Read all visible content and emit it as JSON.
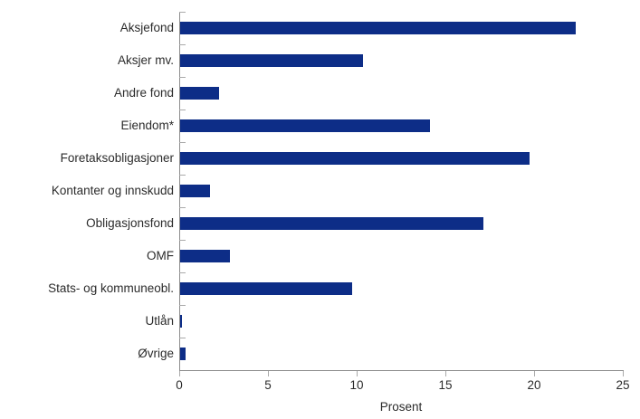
{
  "chart_data": {
    "type": "bar",
    "orientation": "horizontal",
    "title": "",
    "categories": [
      "Aksjefond",
      "Aksjer mv.",
      "Andre fond",
      "Eiendom*",
      "Foretaksobligasjoner",
      "Kontanter og innskudd",
      "Obligasjonsfond",
      "OMF",
      "Stats- og kommuneobl.",
      "Utlån",
      "Øvrige"
    ],
    "values": [
      22.3,
      10.3,
      2.2,
      14.1,
      19.7,
      1.7,
      17.1,
      2.8,
      9.7,
      0.1,
      0.3
    ],
    "xlabel": "Prosent",
    "ylabel": "",
    "xlim": [
      0,
      25
    ],
    "xticks": [
      0,
      5,
      10,
      15,
      20,
      25
    ],
    "grid": false,
    "legend": false,
    "colors": {
      "bar": "#0d2d87",
      "axis": "#8c8c8c",
      "tick": "#aaaaaa",
      "text": "#2b2b2b",
      "background": "#ffffff"
    }
  }
}
